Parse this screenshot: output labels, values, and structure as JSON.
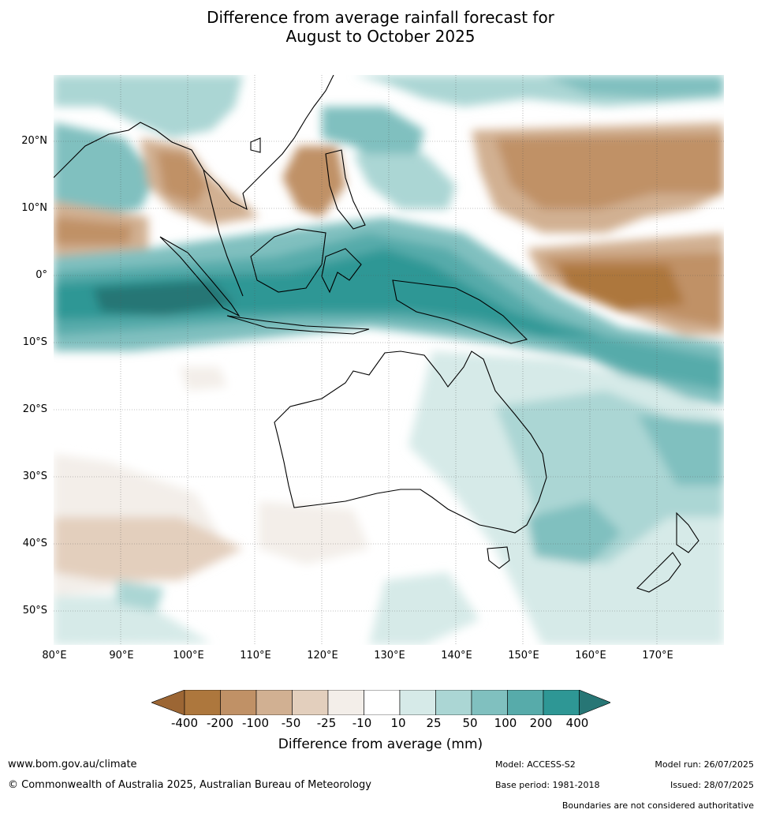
{
  "title_line1": "Difference from average rainfall forecast for",
  "title_line2": "August to October 2025",
  "lat_labels": [
    "20°N",
    "10°N",
    "0°",
    "10°S",
    "20°S",
    "30°S",
    "40°S",
    "50°S"
  ],
  "lon_labels": [
    "80°E",
    "90°E",
    "100°E",
    "110°E",
    "120°E",
    "130°E",
    "140°E",
    "150°E",
    "160°E",
    "170°E"
  ],
  "colorbar": {
    "title": "Difference from average (mm)",
    "ticks": [
      "-400",
      "-200",
      "-100",
      "-50",
      "-25",
      "-10",
      "10",
      "25",
      "50",
      "100",
      "200",
      "400"
    ],
    "colors": [
      "#9c6634",
      "#ad773d",
      "#c09166",
      "#d1b092",
      "#e3cfbd",
      "#f3eee9",
      "#ffffff",
      "#d6eae8",
      "#abd6d4",
      "#80c0bf",
      "#57abaa",
      "#2e9795",
      "#277675"
    ]
  },
  "footer": {
    "url": "www.bom.gov.au/climate",
    "copyright": "© Commonwealth of Australia 2025, Australian Bureau of Meteorology",
    "model": "Model: ACCESS-S2",
    "base_period": "Base period: 1981-2018",
    "model_run": "Model run: 26/07/2025",
    "issued": "Issued: 28/07/2025",
    "boundaries": "Boundaries are not considered authoritative"
  }
}
